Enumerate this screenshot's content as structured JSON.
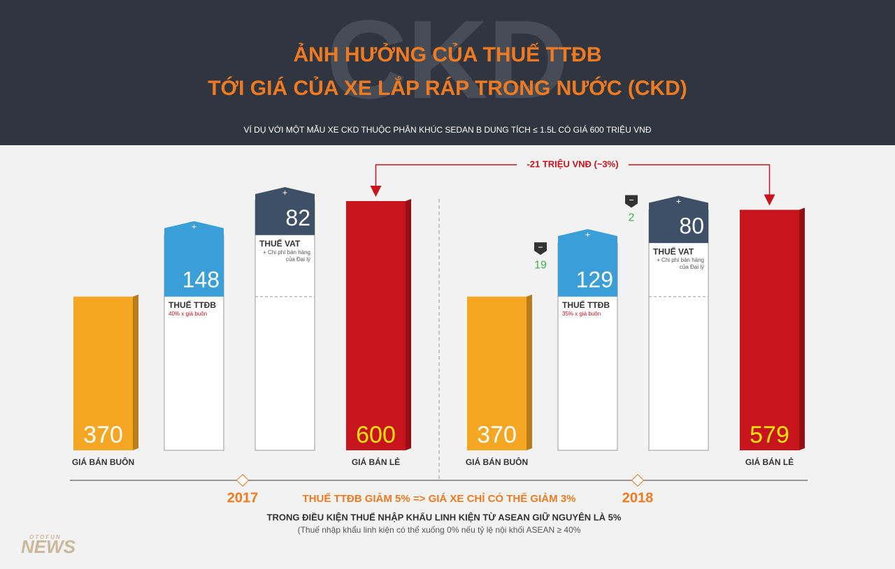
{
  "header": {
    "watermark": "CKD",
    "title_line1": "ẢNH HƯỞNG CỦA THUẾ TTĐB",
    "title_line2": "TỚI GIÁ CỦA XE LẮP RÁP TRONG NƯỚC (CKD)",
    "subtitle": "VÍ DỤ VỚI MỘT MẪU XE CKD THUỘC PHÂN KHÚC SEDAN B DUNG TÍCH ≤ 1.5L CÓ GIÁ 600 TRIỆU VNĐ"
  },
  "chart_data": {
    "type": "waterfall",
    "ylim": [
      0,
      600
    ],
    "groups": [
      {
        "year": "2017",
        "steps": [
          {
            "label": "GIÁ BÁN BUÔN",
            "value": 370,
            "kind": "base",
            "color": "#f5a623"
          },
          {
            "label": "THUẾ TTĐB",
            "note": "40% x giá buôn",
            "value": 148,
            "kind": "add",
            "color": "#3a9fd8"
          },
          {
            "label": "THUẾ VAT",
            "note": "+ Chi phí bán hàng của Đại lý",
            "value": 82,
            "kind": "add",
            "color": "#3d5068"
          },
          {
            "label": "GIÁ BÁN LẺ",
            "value": 600,
            "kind": "total",
            "color": "#c8141c"
          }
        ]
      },
      {
        "year": "2018",
        "steps": [
          {
            "label": "GIÁ BÁN BUÔN",
            "value": 370,
            "kind": "base",
            "color": "#f5a623"
          },
          {
            "label": "THUẾ TTĐB",
            "note": "35% x giá buôn",
            "value": 129,
            "decrease": 19,
            "kind": "add",
            "color": "#3a9fd8"
          },
          {
            "label": "THUẾ VAT",
            "note": "+ Chi phí bán hàng của Đại lý",
            "value": 80,
            "decrease": 2,
            "kind": "add",
            "color": "#3d5068"
          },
          {
            "label": "GIÁ BÁN LẺ",
            "value": 579,
            "kind": "total",
            "color": "#c8141c"
          }
        ]
      }
    ],
    "difference_label": "-21 TRIỆU VNĐ (~3%)"
  },
  "footer": {
    "highlight": "THUẾ TTĐB GIẢM 5% => GIÁ XE CHỈ CÓ THỂ GIẢM 3%",
    "note": "TRONG ĐIỀU KIỆN THUẾ NHẬP KHẨU LINH KIỆN TỪ ASEAN GIỮ NGUYÊN LÀ 5%",
    "subnote": "(Thuế nhập khẩu linh kiện có thể xuống 0% nếu tỷ lệ nội khối ASEAN ≥ 40%",
    "brand_top": "OTOFUN",
    "brand": "NEWS"
  }
}
